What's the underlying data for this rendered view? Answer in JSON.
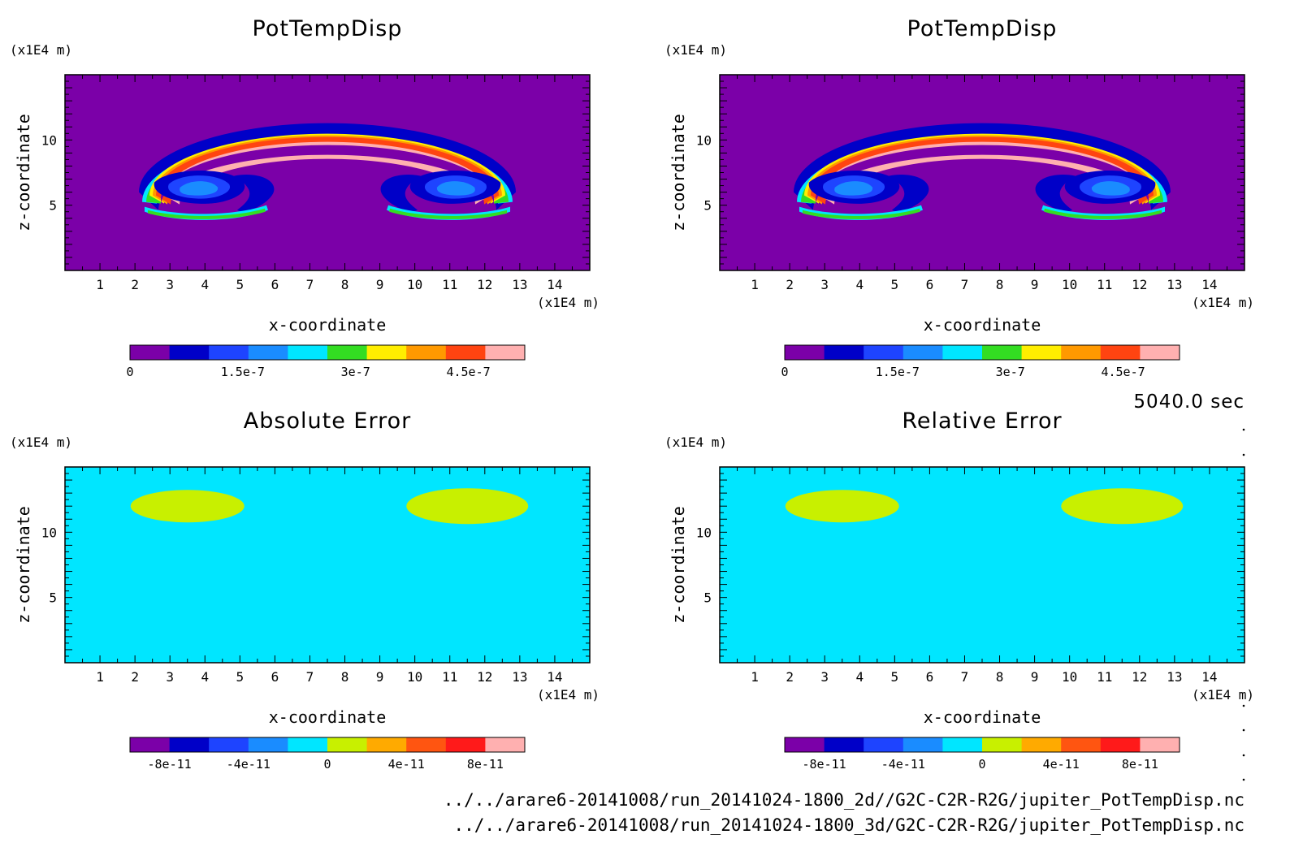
{
  "colors": {
    "potential_temperature": [
      "#7b00a8",
      "#0000c8",
      "#1e44ff",
      "#1a8cff",
      "#00e6ff",
      "#33dd22",
      "#ffee00",
      "#ff9900",
      "#ff4411",
      "#ffb0b0"
    ],
    "error": [
      "#7b00a8",
      "#0000c8",
      "#1e44ff",
      "#1a8cff",
      "#00e6ff",
      "#c8f000",
      "#ffaa00",
      "#ff5511",
      "#ff1a1a",
      "#ffb0b0"
    ],
    "error_field_a": "#00e6ff",
    "error_field_b": "#c8f000"
  },
  "time_label": "5040.0 sec",
  "file_paths": [
    "../../arare6-20141008/run_20141024-1800_2d//G2C-C2R-R2G/jupiter_PotTempDisp.nc",
    "../../arare6-20141008/run_20141024-1800_3d/G2C-C2R-R2G/jupiter_PotTempDisp.nc"
  ],
  "chart_data": [
    {
      "type": "heatmap",
      "title": "PotTempDisp",
      "xlabel": "x-coordinate",
      "ylabel": "z-coordinate",
      "x_unit": "(x1E4 m)",
      "y_unit": "(x1E4 m)",
      "xlim": [
        0,
        15
      ],
      "ylim": [
        0,
        15
      ],
      "x_ticks": [
        1,
        2,
        3,
        4,
        5,
        6,
        7,
        8,
        9,
        10,
        11,
        12,
        13,
        14
      ],
      "y_ticks": [
        5,
        10
      ],
      "colorbar": {
        "levels": 10,
        "range": [
          0,
          5.25e-07
        ],
        "tick_labels": [
          "0",
          "1.5e-7",
          "3e-7",
          "4.5e-7"
        ],
        "tick_values": [
          0,
          1.5e-07,
          3e-07,
          4.5e-07
        ]
      }
    },
    {
      "type": "heatmap",
      "title": "PotTempDisp",
      "xlabel": "x-coordinate",
      "ylabel": "z-coordinate",
      "x_unit": "(x1E4 m)",
      "y_unit": "(x1E4 m)",
      "xlim": [
        0,
        15
      ],
      "ylim": [
        0,
        15
      ],
      "x_ticks": [
        1,
        2,
        3,
        4,
        5,
        6,
        7,
        8,
        9,
        10,
        11,
        12,
        13,
        14
      ],
      "y_ticks": [
        5,
        10
      ],
      "colorbar": {
        "levels": 10,
        "range": [
          0,
          5.25e-07
        ],
        "tick_labels": [
          "0",
          "1.5e-7",
          "3e-7",
          "4.5e-7"
        ],
        "tick_values": [
          0,
          1.5e-07,
          3e-07,
          4.5e-07
        ]
      }
    },
    {
      "type": "heatmap",
      "title": "Absolute Error",
      "xlabel": "x-coordinate",
      "ylabel": "z-coordinate",
      "x_unit": "(x1E4 m)",
      "y_unit": "(x1E4 m)",
      "xlim": [
        0,
        15
      ],
      "ylim": [
        0,
        15
      ],
      "x_ticks": [
        1,
        2,
        3,
        4,
        5,
        6,
        7,
        8,
        9,
        10,
        11,
        12,
        13,
        14
      ],
      "y_ticks": [
        5,
        10
      ],
      "colorbar": {
        "levels": 10,
        "range": [
          -1e-10,
          1e-10
        ],
        "tick_labels": [
          "-8e-11",
          "-4e-11",
          "0",
          "4e-11",
          "8e-11"
        ],
        "tick_values": [
          -8e-11,
          -4e-11,
          0,
          4e-11,
          8e-11
        ]
      }
    },
    {
      "type": "heatmap",
      "title": "Relative Error",
      "xlabel": "x-coordinate",
      "ylabel": "z-coordinate",
      "x_unit": "(x1E4 m)",
      "y_unit": "(x1E4 m)",
      "xlim": [
        0,
        15
      ],
      "ylim": [
        0,
        15
      ],
      "x_ticks": [
        1,
        2,
        3,
        4,
        5,
        6,
        7,
        8,
        9,
        10,
        11,
        12,
        13,
        14
      ],
      "y_ticks": [
        5,
        10
      ],
      "colorbar": {
        "levels": 10,
        "range": [
          -1e-10,
          1e-10
        ],
        "tick_labels": [
          "-8e-11",
          "-4e-11",
          "0",
          "4e-11",
          "8e-11"
        ],
        "tick_values": [
          -8e-11,
          -4e-11,
          0,
          4e-11,
          8e-11
        ]
      }
    }
  ]
}
